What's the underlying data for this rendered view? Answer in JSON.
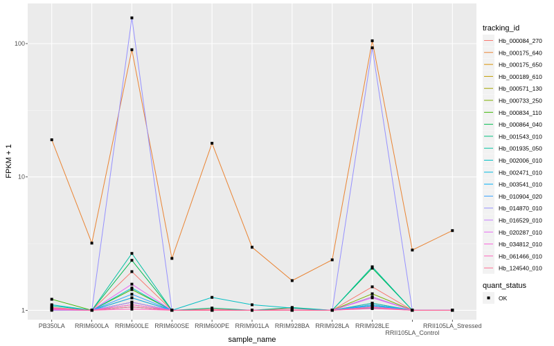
{
  "chart_data": {
    "type": "line",
    "xlabel": "sample_name",
    "ylabel": "FPKM + 1",
    "y_scale": "log10",
    "ylim": [
      0.85,
      200
    ],
    "y_ticks": [
      1,
      10,
      100
    ],
    "y_tick_labels": [
      "1",
      "10",
      "100"
    ],
    "grid": true,
    "legend_position": "right",
    "categories": [
      "PB350LA",
      "RRIM600LA",
      "RRIM600LE",
      "RRIM600SE",
      "RRIM600PE",
      "RRIM901LA",
      "RRIM928BA",
      "RRIM928LA",
      "RRIM928LE",
      "RRII105LA_Control",
      "RRII105LA_Stressed"
    ],
    "legend_title": "tracking_id",
    "series": [
      {
        "name": "Hb_000084_270",
        "color": "#F8766D",
        "values": [
          1.05,
          1,
          1.95,
          1,
          1.02,
          1,
          1.03,
          1,
          1.5,
          1,
          1
        ]
      },
      {
        "name": "Hb_000175_640",
        "color": "#EA8331",
        "values": [
          19,
          3.19,
          90,
          2.45,
          17.9,
          2.97,
          1.67,
          2.39,
          105,
          2.83,
          3.96
        ]
      },
      {
        "name": "Hb_000175_650",
        "color": "#D89000",
        "values": [
          1.03,
          1,
          1.24,
          1,
          1,
          1,
          1,
          1,
          1.13,
          1,
          1
        ]
      },
      {
        "name": "Hb_000189_610",
        "color": "#C09B00",
        "values": [
          1.02,
          1,
          1.1,
          1,
          1,
          1,
          1,
          1,
          1.08,
          1,
          1
        ]
      },
      {
        "name": "Hb_000571_130",
        "color": "#A3A500",
        "values": [
          1.01,
          1,
          1.06,
          1,
          1,
          1,
          1,
          1,
          1.05,
          1,
          1
        ]
      },
      {
        "name": "Hb_000733_250",
        "color": "#7CAE00",
        "values": [
          1.03,
          1,
          1.15,
          1,
          1,
          1,
          1,
          1,
          1.33,
          1,
          1
        ]
      },
      {
        "name": "Hb_000834_110",
        "color": "#39B600",
        "values": [
          1.21,
          1,
          1.43,
          1,
          1,
          1,
          1,
          1,
          1.26,
          1,
          1
        ]
      },
      {
        "name": "Hb_000864_040",
        "color": "#00BB4E",
        "values": [
          1.02,
          1,
          2.37,
          1,
          1,
          1,
          1,
          1,
          2.07,
          1,
          1
        ]
      },
      {
        "name": "Hb_001543_010",
        "color": "#00BF7D",
        "values": [
          1.04,
          1,
          1.15,
          1,
          1.04,
          1,
          1.05,
          1,
          1.1,
          1,
          1
        ]
      },
      {
        "name": "Hb_001935_050",
        "color": "#00C1A3",
        "values": [
          1.08,
          1,
          2.67,
          1,
          1,
          1,
          1,
          1,
          2.12,
          1,
          1
        ]
      },
      {
        "name": "Hb_002006_010",
        "color": "#00BFC4",
        "values": [
          1.1,
          1,
          1.47,
          1,
          1.25,
          1.1,
          1.04,
          1,
          1.13,
          1,
          1
        ]
      },
      {
        "name": "Hb_002471_010",
        "color": "#00BAE0",
        "values": [
          1.02,
          1,
          1.06,
          1,
          1,
          1,
          1,
          1,
          1.04,
          1,
          1
        ]
      },
      {
        "name": "Hb_003541_010",
        "color": "#00B0F6",
        "values": [
          1.03,
          1,
          1.24,
          1,
          1,
          1,
          1,
          1,
          1.08,
          1,
          1
        ]
      },
      {
        "name": "Hb_010904_020",
        "color": "#35A2FF",
        "values": [
          1.02,
          1,
          1.32,
          1,
          1,
          1,
          1,
          1,
          1.1,
          1,
          1
        ]
      },
      {
        "name": "Hb_014870_010",
        "color": "#9590FF",
        "values": [
          1,
          1,
          156,
          1,
          1,
          1,
          1,
          1,
          93,
          1,
          1
        ]
      },
      {
        "name": "Hb_016529_010",
        "color": "#C77CFF",
        "values": [
          1.02,
          1,
          1.15,
          1,
          1,
          1,
          1,
          1,
          1.26,
          1,
          1
        ]
      },
      {
        "name": "Hb_020287_010",
        "color": "#E76BF3",
        "values": [
          1.03,
          1,
          1.57,
          1,
          1,
          1,
          1,
          1,
          1.24,
          1,
          1
        ]
      },
      {
        "name": "Hb_034812_010",
        "color": "#FA62DB",
        "values": [
          1.02,
          1,
          1.1,
          1,
          1,
          1,
          1,
          1,
          1.06,
          1,
          1
        ]
      },
      {
        "name": "Hb_061466_010",
        "color": "#FF62BC",
        "values": [
          1.01,
          1,
          1.02,
          1,
          1,
          1,
          1,
          1,
          1.03,
          1,
          1
        ]
      },
      {
        "name": "Hb_124540_010",
        "color": "#FF6C91",
        "values": [
          1.04,
          1,
          1.06,
          1,
          1,
          1,
          1,
          1,
          1.05,
          1,
          1
        ]
      }
    ],
    "shape_legend_title": "quant_status",
    "shape_legend_items": [
      "OK"
    ]
  }
}
